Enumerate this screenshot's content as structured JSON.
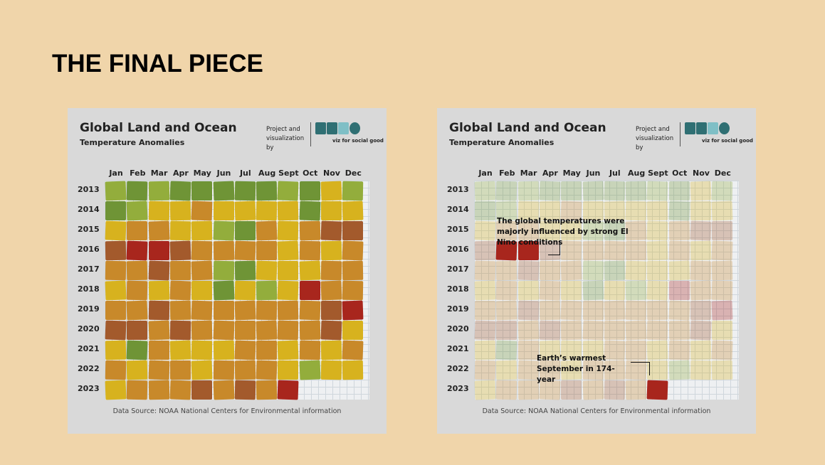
{
  "title": "THE FINAL PIECE",
  "panels": [
    {
      "title": "Global Land and Ocean",
      "subtitle": "Temperature Anomalies",
      "credit": "Project and visualization by",
      "tagline": "viz for social good",
      "months": [
        "Jan",
        "Feb",
        "Mar",
        "Apr",
        "May",
        "Jun",
        "Jul",
        "Aug",
        "Sept",
        "Oct",
        "Nov",
        "Dec"
      ],
      "years": [
        "2013",
        "2014",
        "2015",
        "2016",
        "2017",
        "2018",
        "2019",
        "2020",
        "2021",
        "2022",
        "2023"
      ],
      "source": "Data Source: NOAA National Centers for Environmental information",
      "annotations": []
    },
    {
      "title": "Global Land and Ocean",
      "subtitle": "Temperature Anomalies",
      "credit": "Project and visualization by",
      "tagline": "viz for social good",
      "months": [
        "Jan",
        "Feb",
        "Mar",
        "Apr",
        "May",
        "Jun",
        "Jul",
        "Aug",
        "Sept",
        "Oct",
        "Nov",
        "Dec"
      ],
      "years": [
        "2013",
        "2014",
        "2015",
        "2016",
        "2017",
        "2018",
        "2019",
        "2020",
        "2021",
        "2022",
        "2023"
      ],
      "source": "Data Source: NOAA National Centers for Environmental information",
      "annotations": [
        "The global temperatures were majorly influenced by strong El Nino conditions",
        "Earth’s warmest September in 174-year"
      ]
    }
  ]
}
